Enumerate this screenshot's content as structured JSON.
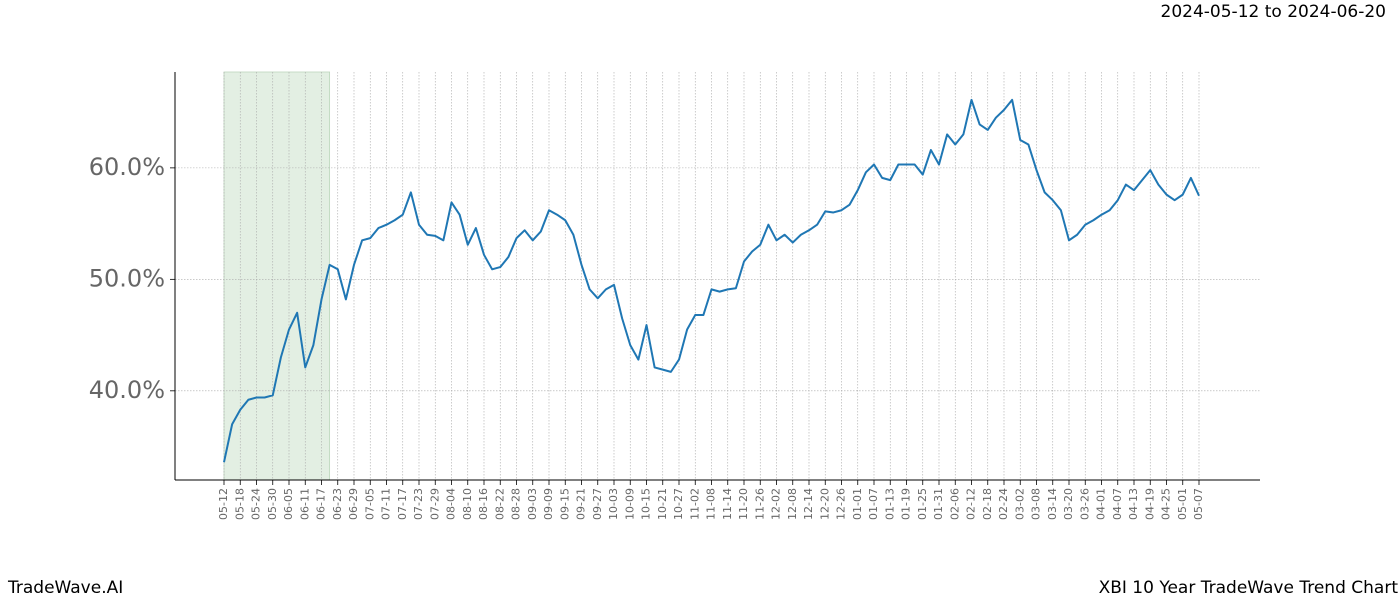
{
  "chart_data": {
    "type": "line",
    "title": "2024-05-12 to 2024-06-20",
    "categories": [
      "05-12",
      null,
      "05-18",
      null,
      "05-24",
      null,
      "05-30",
      null,
      "06-05",
      null,
      "06-11",
      null,
      "06-17",
      null,
      "06-23",
      null,
      "06-29",
      null,
      "07-05",
      null,
      "07-11",
      null,
      "07-17",
      null,
      "07-23",
      null,
      "07-29",
      null,
      "08-04",
      null,
      "08-10",
      null,
      "08-16",
      null,
      "08-22",
      null,
      "08-28",
      null,
      "09-03",
      null,
      "09-09",
      null,
      "09-15",
      null,
      "09-21",
      null,
      "09-27",
      null,
      "10-03",
      null,
      "10-09",
      null,
      "10-15",
      null,
      "10-21",
      null,
      "10-27",
      null,
      "11-02",
      null,
      "11-08",
      null,
      "11-14",
      null,
      "11-20",
      null,
      "11-26",
      null,
      "12-02",
      null,
      "12-08",
      null,
      "12-14",
      null,
      "12-20",
      null,
      "12-26",
      null,
      "01-01",
      null,
      "01-07",
      null,
      "01-13",
      null,
      "01-19",
      null,
      "01-25",
      null,
      "01-31",
      null,
      "02-06",
      null,
      "02-12",
      null,
      "02-18",
      null,
      "02-24",
      null,
      "03-02",
      null,
      "03-08",
      null,
      "03-14",
      null,
      "03-20",
      null,
      "03-26",
      null,
      "04-01",
      null,
      "04-07",
      null,
      "04-13",
      null,
      "04-19",
      null,
      "04-25",
      null,
      "05-01",
      null,
      "05-07"
    ],
    "values": [
      33.6,
      37.0,
      38.3,
      39.2,
      39.4,
      39.4,
      39.6,
      43.0,
      45.5,
      47.0,
      42.1,
      44.1,
      48.2,
      51.3,
      50.9,
      48.2,
      51.3,
      53.5,
      53.7,
      54.6,
      54.9,
      55.3,
      55.8,
      57.8,
      54.9,
      54.0,
      53.9,
      53.5,
      56.9,
      55.8,
      53.1,
      54.6,
      52.2,
      50.9,
      51.1,
      52.0,
      53.7,
      54.4,
      53.5,
      54.3,
      56.2,
      55.8,
      55.3,
      54.0,
      51.3,
      49.1,
      48.3,
      49.1,
      49.5,
      46.5,
      44.1,
      42.8,
      45.9,
      42.1,
      41.9,
      41.7,
      42.8,
      45.5,
      46.8,
      46.8,
      49.1,
      48.9,
      49.1,
      49.2,
      51.6,
      52.5,
      53.1,
      54.9,
      53.5,
      54.0,
      53.3,
      54.0,
      54.4,
      54.9,
      56.1,
      56.0,
      56.2,
      56.7,
      58.0,
      59.6,
      60.3,
      59.1,
      58.9,
      60.3,
      60.3,
      60.3,
      59.4,
      61.6,
      60.3,
      63.0,
      62.1,
      63.0,
      66.1,
      63.9,
      63.4,
      64.5,
      65.2,
      66.1,
      62.5,
      62.1,
      59.8,
      57.8,
      57.1,
      56.2,
      53.5,
      54.0,
      54.9,
      55.3,
      55.8,
      56.2,
      57.1,
      58.5,
      58.0,
      58.9,
      59.8,
      58.5,
      57.6,
      57.1,
      57.6,
      59.1,
      57.5
    ],
    "color": "#1f77b4",
    "ylim": [
      32.0,
      68.6
    ],
    "yticks": [
      {
        "value": 40,
        "label": "40.0%"
      },
      {
        "value": 50,
        "label": "50.0%"
      },
      {
        "value": 60,
        "label": "60.0%"
      }
    ],
    "grid": true,
    "shaded": {
      "start": 0,
      "end": 13,
      "color": "#e3efe3"
    }
  },
  "footer": {
    "left": "TradeWave.AI",
    "right": "XBI 10 Year TradeWave Trend Chart"
  }
}
